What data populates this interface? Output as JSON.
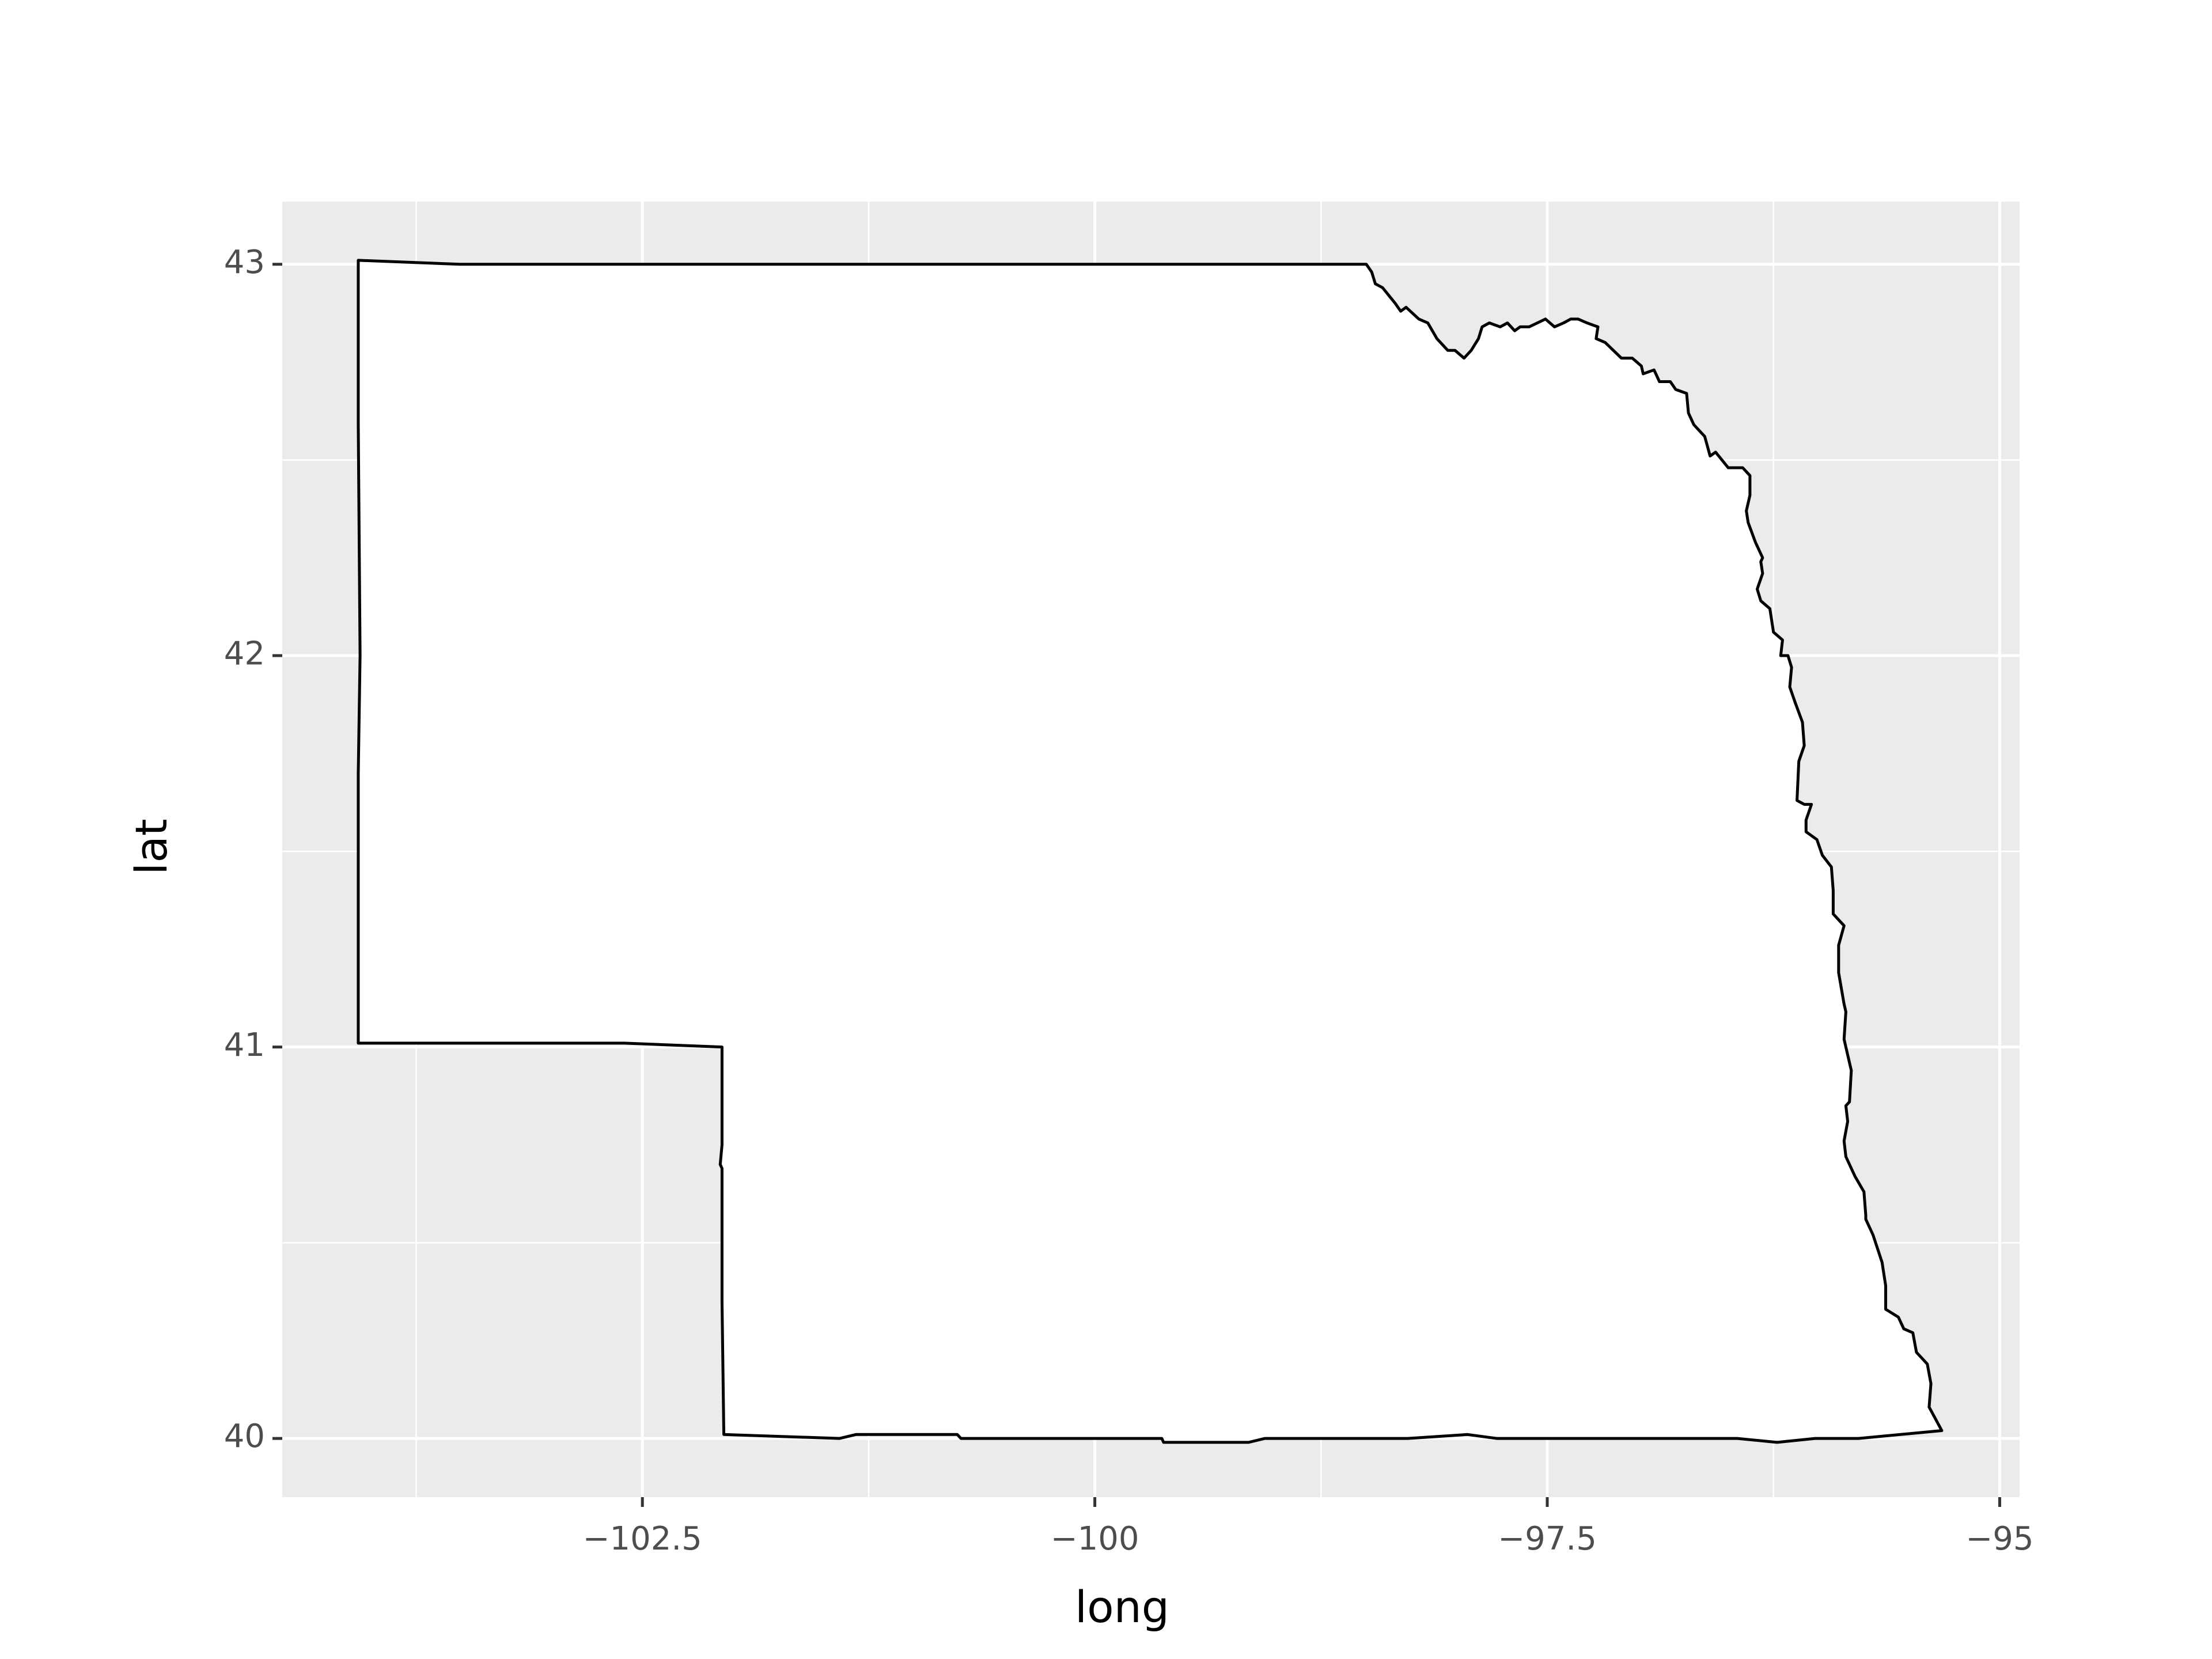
{
  "chart_data": {
    "type": "polygon",
    "x_label": "long",
    "y_label": "lat",
    "xlim": [
      -104.49,
      -94.89
    ],
    "ylim": [
      39.85,
      43.16
    ],
    "xticks": [
      {
        "value": -102.5,
        "label": "−102.5"
      },
      {
        "value": -100,
        "label": "−100"
      },
      {
        "value": -97.5,
        "label": "−97.5"
      },
      {
        "value": -95,
        "label": "−95"
      }
    ],
    "yticks": [
      40,
      41,
      42,
      43
    ],
    "grid": true,
    "background": "#ebebeb",
    "fill": "#ffffff",
    "color": "#000000",
    "x": [
      -104.07,
      -103.51,
      -98.5,
      -98.47,
      -98.45,
      -98.41,
      -98.34,
      -98.31,
      -98.28,
      -98.21,
      -98.16,
      -98.11,
      -98.05,
      -98.01,
      -97.96,
      -97.92,
      -97.88,
      -97.86,
      -97.82,
      -97.76,
      -97.72,
      -97.68,
      -97.65,
      -97.6,
      -97.51,
      -97.46,
      -97.41,
      -97.37,
      -97.33,
      -97.28,
      -97.22,
      -97.23,
      -97.18,
      -97.09,
      -97.03,
      -96.98,
      -96.97,
      -96.91,
      -96.88,
      -96.82,
      -96.79,
      -96.73,
      -96.72,
      -96.69,
      -96.63,
      -96.6,
      -96.57,
      -96.5,
      -96.42,
      -96.38,
      -96.38,
      -96.4,
      -96.39,
      -96.35,
      -96.31,
      -96.32,
      -96.31,
      -96.34,
      -96.32,
      -96.27,
      -96.25,
      -96.2,
      -96.21,
      -96.17,
      -96.15,
      -96.16,
      -96.13,
      -96.09,
      -96.08,
      -96.11,
      -96.12,
      -96.08,
      -96.04,
      -96.07,
      -96.07,
      -96.04,
      -96.01,
      -95.98,
      -95.93,
      -95.92,
      -95.92,
      -95.86,
      -95.89,
      -95.89,
      -95.86,
      -95.85,
      -95.86,
      -95.82,
      -95.83,
      -95.85,
      -95.84,
      -95.86,
      -95.85,
      -95.8,
      -95.75,
      -95.74,
      -95.74,
      -95.7,
      -95.65,
      -95.63,
      -95.63,
      -95.56,
      -95.53,
      -95.48,
      -95.46,
      -95.4,
      -95.38,
      -95.39,
      -95.32,
      -95.78,
      -96.02,
      -96.23,
      -96.45,
      -97.78,
      -97.94,
      -98.27,
      -99.06,
      -99.15,
      -99.62,
      -99.63,
      -100.74,
      -100.76,
      -101.32,
      -101.41,
      -102.05,
      -102.06,
      -102.06,
      -102.07,
      -102.06,
      -102.06,
      -102.6,
      -104.07,
      -104.07,
      -104.06,
      -104.07,
      -104.07
    ],
    "y": [
      43.01,
      43.0,
      43.0,
      42.98,
      42.95,
      42.94,
      42.9,
      42.88,
      42.89,
      42.86,
      42.85,
      42.81,
      42.78,
      42.78,
      42.76,
      42.78,
      42.81,
      42.84,
      42.85,
      42.84,
      42.85,
      42.83,
      42.84,
      42.84,
      42.86,
      42.84,
      42.85,
      42.86,
      42.86,
      42.85,
      42.84,
      42.81,
      42.8,
      42.76,
      42.76,
      42.74,
      42.72,
      42.73,
      42.7,
      42.7,
      42.68,
      42.67,
      42.62,
      42.59,
      42.56,
      42.51,
      42.52,
      42.48,
      42.48,
      42.46,
      42.41,
      42.37,
      42.34,
      42.29,
      42.25,
      42.24,
      42.21,
      42.17,
      42.14,
      42.12,
      42.06,
      42.04,
      42.0,
      42.0,
      41.97,
      41.92,
      41.88,
      41.83,
      41.77,
      41.73,
      41.63,
      41.62,
      41.62,
      41.58,
      41.55,
      41.54,
      41.53,
      41.49,
      41.46,
      41.4,
      41.34,
      41.31,
      41.26,
      41.19,
      41.11,
      41.09,
      41.02,
      40.94,
      40.86,
      40.85,
      40.81,
      40.76,
      40.72,
      40.67,
      40.63,
      40.57,
      40.56,
      40.52,
      40.45,
      40.39,
      40.33,
      40.31,
      40.28,
      40.27,
      40.22,
      40.19,
      40.14,
      40.08,
      40.02,
      40.0,
      40.0,
      39.99,
      40.0,
      40.0,
      40.01,
      40.0,
      40.0,
      39.99,
      39.99,
      40.0,
      40.0,
      40.01,
      40.01,
      40.0,
      40.01,
      40.35,
      40.69,
      40.7,
      40.75,
      41.0,
      41.01,
      41.01,
      41.7,
      42.0,
      42.59,
      43.01
    ]
  }
}
